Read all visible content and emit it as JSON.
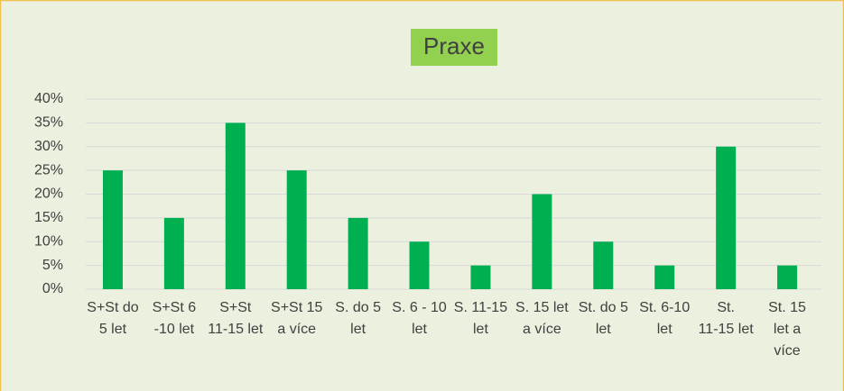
{
  "chart_data": {
    "type": "bar",
    "title": "Praxe",
    "categories": [
      "S+St do 5 let",
      "S+St 6 -10 let",
      "S+St 11-15 let",
      "S+St 15 a více",
      "S. do 5 let",
      "S. 6 - 10 let",
      "S. 11-15 let",
      "S. 15 let a více",
      "St. do 5 let",
      "St. 6-10 let",
      "St. 11-15 let",
      "St. 15 let a více"
    ],
    "values": [
      25,
      15,
      35,
      25,
      15,
      10,
      5,
      20,
      10,
      5,
      30,
      5
    ],
    "color": "#00b050",
    "ylim": [
      0,
      40
    ],
    "yticks": [
      {
        "value": 0,
        "label": "0%"
      },
      {
        "value": 5,
        "label": "5%"
      },
      {
        "value": 10,
        "label": "10%"
      },
      {
        "value": 15,
        "label": "15%"
      },
      {
        "value": 20,
        "label": "20%"
      },
      {
        "value": 25,
        "label": "25%"
      },
      {
        "value": 30,
        "label": "30%"
      },
      {
        "value": 35,
        "label": "35%"
      },
      {
        "value": 40,
        "label": "40%"
      }
    ],
    "grid": true
  }
}
